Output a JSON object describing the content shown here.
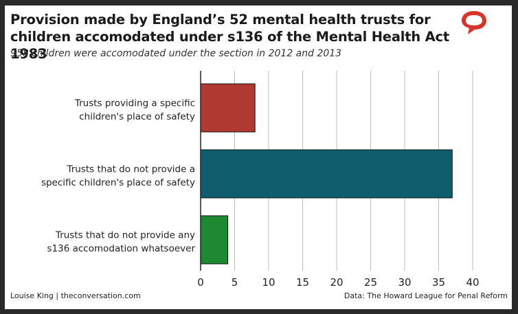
{
  "header": {
    "title": "Provision made by England’s 52 mental health trusts for children accomodated under s136 of the Mental Health Act 1983",
    "subtitle": "958 children were accomodated under the section in 2012 and 2013"
  },
  "footer": {
    "credit": "Louise King | theconversation.com",
    "source": "Data: The Howard League for Penal Reform"
  },
  "logo": {
    "icon": "speech-bubble-icon",
    "color": "#d8352a"
  },
  "chart_data": {
    "type": "bar",
    "orientation": "horizontal",
    "categories": [
      [
        "Trusts providing a specific",
        "children's place of safety"
      ],
      [
        "Trusts that do not provide a",
        "specific children's place of safety"
      ],
      [
        "Trusts that do not provide any",
        "s136 accomodation whatsoever"
      ]
    ],
    "values": [
      8,
      37,
      4
    ],
    "colors": [
      "#b03a32",
      "#0f5d6d",
      "#1d8a32"
    ],
    "xlim": [
      0,
      40
    ],
    "xticks": [
      0,
      5,
      10,
      15,
      20,
      25,
      30,
      35,
      40
    ],
    "grid": true
  }
}
